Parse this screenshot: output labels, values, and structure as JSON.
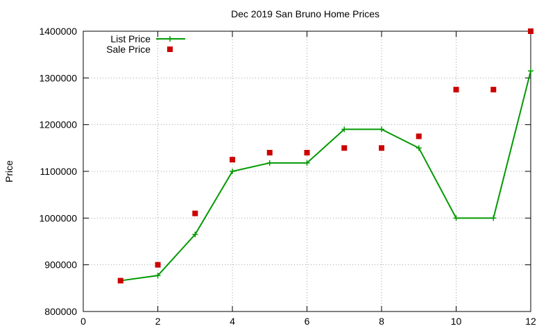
{
  "chart_data": {
    "type": "line",
    "title": "Dec 2019 San Bruno Home Prices",
    "xlabel": "",
    "ylabel": "Price",
    "xlim": [
      0,
      12
    ],
    "ylim": [
      800000,
      1400000
    ],
    "xticks": [
      0,
      2,
      4,
      6,
      8,
      10,
      12
    ],
    "yticks": [
      800000,
      900000,
      1000000,
      1100000,
      1200000,
      1300000,
      1400000
    ],
    "grid": true,
    "legend_position": "top-left",
    "series": [
      {
        "name": "List Price",
        "kind": "line",
        "marker": "plus",
        "color": "#009900",
        "x": [
          1,
          2,
          3,
          4,
          5,
          6,
          7,
          8,
          9,
          10,
          11,
          12
        ],
        "y": [
          866000,
          877000,
          965000,
          1100000,
          1118000,
          1118000,
          1190000,
          1190000,
          1150000,
          1000000,
          1000000,
          1315000
        ]
      },
      {
        "name": "Sale Price",
        "kind": "scatter",
        "marker": "square",
        "color": "#cc0000",
        "x": [
          1,
          2,
          3,
          4,
          5,
          6,
          7,
          8,
          9,
          10,
          11,
          12
        ],
        "y": [
          866000,
          900000,
          1010000,
          1125000,
          1140000,
          1140000,
          1150000,
          1150000,
          1175000,
          1275000,
          1275000,
          1400000
        ]
      }
    ]
  }
}
